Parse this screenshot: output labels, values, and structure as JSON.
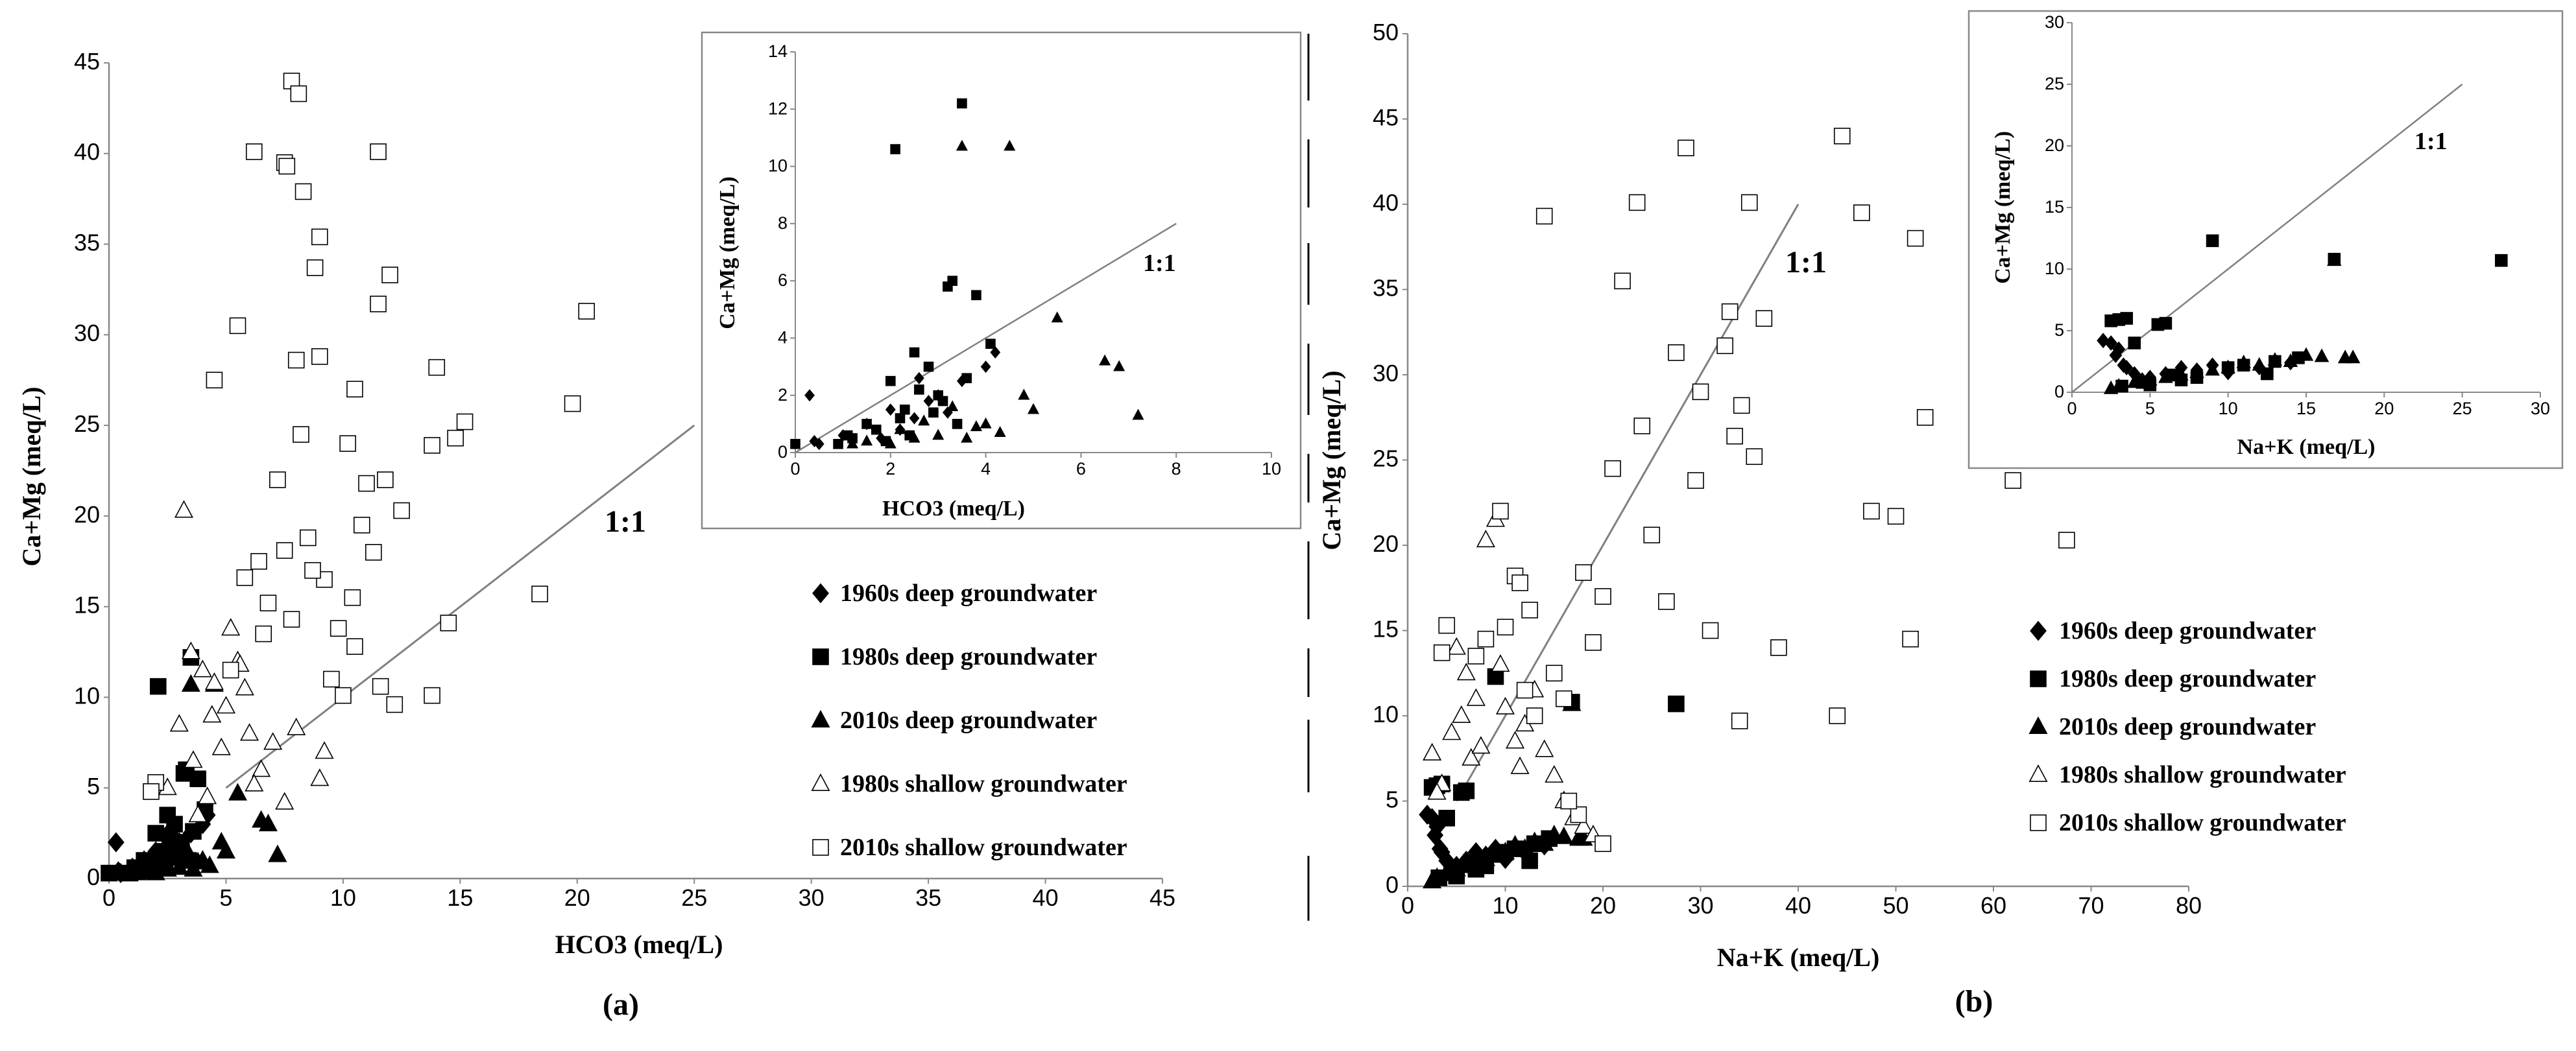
{
  "figure": {
    "divider_color": "#000000"
  },
  "chart_data": [
    {
      "id": "a-main",
      "type": "scatter",
      "panel_label": "(a)",
      "xlabel": "HCO3 (meq/L)",
      "ylabel": "Ca+Mg (meq/L)",
      "xlim": [
        0,
        45
      ],
      "ylim": [
        0,
        45
      ],
      "xticks": [
        "0",
        "5",
        "10",
        "15",
        "20",
        "25",
        "30",
        "35",
        "40",
        "45"
      ],
      "yticks": [
        "0",
        "5",
        "10",
        "15",
        "20",
        "25",
        "30",
        "35",
        "40",
        "45"
      ],
      "grid": false,
      "legend_position": "right",
      "reference_line": {
        "label": "1:1",
        "x": [
          5,
          25
        ],
        "y": [
          5,
          25
        ]
      },
      "series": [
        {
          "name": "1960s  deep groundwater",
          "marker": "diamond",
          "fill": "#000000",
          "x": [
            0.3,
            0.4,
            0.5,
            1.0,
            1.5,
            2.0,
            2.5,
            2.8,
            3.0,
            3.5,
            4.0,
            4.2,
            2.2,
            1.8,
            3.2,
            2.6
          ],
          "y": [
            2.0,
            0.4,
            0.3,
            0.6,
            1.0,
            1.5,
            1.2,
            1.8,
            2.0,
            2.5,
            3.0,
            3.5,
            0.8,
            0.5,
            1.4,
            2.6
          ]
        },
        {
          "name": "1980s  deep groundwater",
          "marker": "square",
          "fill": "#000000",
          "x": [
            0.0,
            2.1,
            3.5,
            3.3,
            3.2,
            2.5,
            3.8,
            2.0,
            2.8,
            3.0,
            2.3,
            1.2,
            1.5,
            1.7,
            2.2,
            2.6,
            3.1,
            3.6,
            4.1,
            2.4,
            1.9,
            2.9,
            3.4,
            0.9,
            1.1
          ],
          "y": [
            0.3,
            10.6,
            12.2,
            6.0,
            5.8,
            3.5,
            5.5,
            2.5,
            3.0,
            2.0,
            1.5,
            0.5,
            1.0,
            0.8,
            1.2,
            2.2,
            1.8,
            2.6,
            3.8,
            0.6,
            0.4,
            1.4,
            1.0,
            0.3,
            0.6
          ]
        },
        {
          "name": "2010s  deep groundwater",
          "marker": "triangle",
          "fill": "#000000",
          "x": [
            3.5,
            4.5,
            5.5,
            6.5,
            6.8,
            7.2,
            5.0,
            4.0,
            3.0,
            2.5,
            2.0,
            1.5,
            4.3,
            3.8,
            2.7,
            3.3,
            4.8,
            1.2,
            2.2,
            3.6
          ],
          "y": [
            10.7,
            10.7,
            4.7,
            3.2,
            3.0,
            1.3,
            1.5,
            1.0,
            0.6,
            0.5,
            0.3,
            0.4,
            0.7,
            0.9,
            1.1,
            1.6,
            2.0,
            0.3,
            0.8,
            0.5
          ]
        },
        {
          "name": "1980s  shallow groundwater",
          "marker": "triangle",
          "fill": "#ffffff",
          "x": [
            3.2,
            3.5,
            4.0,
            4.5,
            5.0,
            5.5,
            6.0,
            7.0,
            8.0,
            9.0,
            9.2,
            4.2,
            3.8,
            5.2,
            6.5,
            4.8,
            3.0,
            2.5,
            5.8,
            7.5,
            4.4,
            3.6,
            5.6,
            6.2
          ],
          "y": [
            20.3,
            12.5,
            11.5,
            10.8,
            9.5,
            12.0,
            8.0,
            7.5,
            8.3,
            5.5,
            7.0,
            4.5,
            3.5,
            13.8,
            6.0,
            7.2,
            8.5,
            5.0,
            10.5,
            4.2,
            9.0,
            6.5,
            11.8,
            5.2
          ]
        },
        {
          "name": "2010s  shallow groundwater",
          "marker": "square",
          "fill": "#ffffff",
          "x": [
            7.8,
            8.1,
            6.2,
            7.5,
            7.6,
            11.5,
            8.3,
            8.8,
            9.0,
            12.0,
            5.5,
            11.5,
            4.5,
            9.0,
            10.5,
            8.0,
            8.2,
            10.2,
            14.0,
            14.8,
            15.2,
            19.8,
            20.4,
            13.8,
            18.4,
            14.5,
            10.0,
            11.6,
            12.2,
            9.5,
            9.2,
            7.5,
            10.8,
            11.0,
            7.2,
            5.8,
            6.6,
            8.7,
            12.5,
            10.4,
            11.8,
            9.8,
            13.8,
            10.5,
            11.3,
            6.4,
            7.8,
            5.2,
            2.0,
            1.8,
            6.8,
            8.5
          ],
          "y": [
            44.0,
            43.3,
            40.1,
            39.5,
            39.3,
            40.1,
            37.9,
            33.7,
            35.4,
            33.3,
            30.5,
            31.7,
            27.5,
            28.8,
            27.0,
            28.6,
            24.5,
            24.0,
            28.2,
            24.3,
            25.2,
            26.2,
            31.3,
            23.9,
            15.7,
            14.1,
            10.1,
            10.6,
            9.6,
            11.0,
            16.5,
            18.1,
            19.5,
            21.8,
            22.0,
            16.6,
            13.5,
            17.0,
            20.3,
            15.5,
            22.0,
            13.8,
            10.1,
            12.8,
            18.0,
            17.5,
            14.3,
            11.5,
            5.3,
            4.8,
            15.2,
            18.8
          ]
        }
      ]
    },
    {
      "id": "a-inset",
      "type": "scatter",
      "xlabel": "HCO3 (meq/L)",
      "ylabel": "Ca+Mg (meq/L)",
      "xlim": [
        0,
        10
      ],
      "ylim": [
        0,
        14
      ],
      "xticks": [
        "0",
        "2",
        "4",
        "6",
        "8",
        "10"
      ],
      "yticks": [
        "0",
        "2",
        "4",
        "6",
        "8",
        "10",
        "12",
        "14"
      ],
      "reference_line": {
        "label": "1:1",
        "x": [
          0,
          8
        ],
        "y": [
          0,
          8
        ]
      }
    },
    {
      "id": "b-main",
      "type": "scatter",
      "panel_label": "(b)",
      "xlabel": "Na+K (meq/L)",
      "ylabel": "Ca+Mg (meq/L)",
      "xlim": [
        0,
        80
      ],
      "ylim": [
        0,
        50
      ],
      "xticks": [
        "0",
        "10",
        "20",
        "30",
        "40",
        "50",
        "60",
        "70",
        "80"
      ],
      "yticks": [
        "0",
        "5",
        "10",
        "15",
        "20",
        "25",
        "30",
        "35",
        "40",
        "45",
        "50"
      ],
      "grid": false,
      "legend_position": "right",
      "reference_line": {
        "label": "1:1",
        "x": [
          5,
          40
        ],
        "y": [
          5,
          40
        ]
      },
      "series": [
        {
          "name": "1960s deep groundwater",
          "marker": "diamond",
          "fill": "#000000",
          "x": [
            2.0,
            2.5,
            3.0,
            3.5,
            4.0,
            2.8,
            3.3,
            4.5,
            5.0,
            6.0,
            7.0,
            8.0,
            9.0,
            10.0,
            12.0,
            14.0
          ],
          "y": [
            4.2,
            4.0,
            3.5,
            2.0,
            1.5,
            3.0,
            2.2,
            1.0,
            1.2,
            1.5,
            2.0,
            1.8,
            2.2,
            1.6,
            2.0,
            2.4
          ]
        },
        {
          "name": "1980s deep groundwater",
          "marker": "square",
          "fill": "#000000",
          "x": [
            2.5,
            3.0,
            3.5,
            4.0,
            5.5,
            6.0,
            9.0,
            27.5,
            16.8,
            12.5,
            10.0,
            7.0,
            8.0,
            4.5,
            6.5,
            11.0,
            13.0,
            14.5,
            3.2,
            5.0
          ],
          "y": [
            5.8,
            5.9,
            6.0,
            4.0,
            5.5,
            5.6,
            12.3,
            10.7,
            10.8,
            1.5,
            2.0,
            1.0,
            1.2,
            0.8,
            1.4,
            2.2,
            2.5,
            2.8,
            0.5,
            0.6
          ]
        },
        {
          "name": "2010s deep groundwater",
          "marker": "triangle",
          "fill": "#000000",
          "x": [
            16.8,
            17.5,
            14.0,
            12.0,
            10.0,
            8.0,
            6.0,
            4.0,
            3.0,
            15.0,
            13.0,
            11.0,
            9.0,
            7.0,
            5.0,
            18.0,
            16.0,
            2.5
          ],
          "y": [
            10.7,
            2.8,
            2.5,
            2.2,
            2.0,
            1.6,
            1.2,
            0.8,
            0.5,
            3.0,
            2.6,
            2.4,
            1.8,
            1.4,
            1.0,
            2.8,
            2.9,
            0.3
          ]
        },
        {
          "name": "1980s shallow groundwater",
          "marker": "triangle",
          "fill": "#ffffff",
          "x": [
            8.0,
            9.0,
            5.0,
            6.0,
            7.0,
            4.5,
            10.0,
            11.0,
            12.0,
            13.0,
            3.5,
            6.5,
            14.0,
            15.0,
            16.0,
            17.0,
            18.0,
            19.0,
            7.5,
            9.5,
            2.5,
            3.0,
            11.5,
            5.5
          ],
          "y": [
            20.3,
            21.5,
            14.0,
            12.5,
            11.0,
            9.0,
            10.5,
            8.5,
            9.5,
            11.5,
            6.0,
            7.5,
            8.0,
            6.5,
            5.0,
            4.0,
            3.5,
            3.0,
            8.2,
            13.0,
            7.8,
            5.5,
            7.0,
            10.0
          ]
        },
        {
          "name": "2010s shallow groundwater",
          "marker": "square",
          "fill": "#ffffff",
          "x": [
            44.5,
            28.5,
            14.0,
            23.5,
            35.0,
            46.5,
            52.0,
            33.0,
            36.5,
            32.5,
            27.5,
            22.0,
            18.0,
            53.0,
            62.0,
            67.5,
            47.5,
            50.0,
            51.5,
            44.0,
            38.0,
            34.0,
            31.0,
            26.5,
            20.0,
            16.0,
            13.0,
            10.0,
            8.0,
            7.0,
            4.0,
            3.5,
            25.0,
            30.0,
            29.5,
            24.0,
            21.0,
            19.0,
            15.0,
            12.0,
            11.0,
            9.5,
            33.5,
            34.2,
            35.5,
            20.0,
            17.5,
            16.5,
            12.5,
            11.5
          ],
          "y": [
            44.0,
            43.3,
            39.3,
            40.1,
            40.1,
            39.5,
            38.0,
            33.7,
            33.3,
            31.7,
            31.3,
            35.5,
            18.4,
            27.5,
            23.8,
            20.3,
            22.0,
            21.7,
            14.5,
            10.0,
            14.0,
            9.7,
            15.0,
            16.7,
            17.0,
            11.0,
            10.0,
            15.2,
            14.5,
            13.5,
            15.3,
            13.7,
            20.6,
            29.0,
            23.8,
            27.0,
            24.5,
            14.3,
            12.5,
            11.5,
            18.2,
            22.0,
            26.4,
            28.2,
            25.2,
            2.5,
            4.2,
            5.0,
            16.2,
            17.8
          ]
        }
      ]
    },
    {
      "id": "b-inset",
      "type": "scatter",
      "xlabel": "Na+K (meq/L)",
      "ylabel": "Ca+Mg (meq/L)",
      "xlim": [
        0,
        30
      ],
      "ylim": [
        0,
        30
      ],
      "xticks": [
        "0",
        "5",
        "10",
        "15",
        "20",
        "25",
        "30"
      ],
      "yticks": [
        "0",
        "5",
        "10",
        "15",
        "20",
        "25",
        "30"
      ],
      "reference_line": {
        "label": "1:1",
        "x": [
          0,
          25
        ],
        "y": [
          0,
          25
        ]
      }
    }
  ]
}
